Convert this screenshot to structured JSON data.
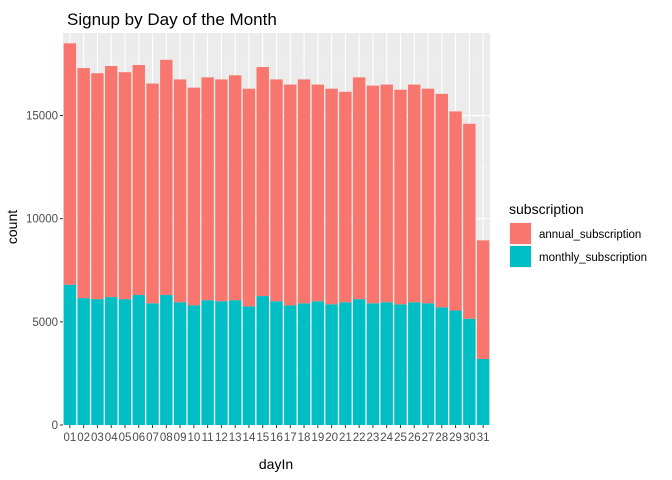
{
  "chart_data": {
    "type": "bar",
    "stacked": true,
    "title": "Signup by Day of the Month",
    "xlabel": "dayIn",
    "ylabel": "count",
    "ylim": [
      0,
      19000
    ],
    "yticks": [
      0,
      5000,
      10000,
      15000
    ],
    "grid": true,
    "legend_position": "right",
    "legend_title": "subscription",
    "categories": [
      "01",
      "02",
      "03",
      "04",
      "05",
      "06",
      "07",
      "08",
      "09",
      "10",
      "11",
      "12",
      "13",
      "14",
      "15",
      "16",
      "17",
      "18",
      "19",
      "20",
      "21",
      "22",
      "23",
      "24",
      "25",
      "26",
      "27",
      "28",
      "29",
      "30",
      "31"
    ],
    "series": [
      {
        "name": "monthly_subscription",
        "color": "#00BFC4",
        "values": [
          6800,
          6150,
          6100,
          6200,
          6100,
          6300,
          5900,
          6300,
          5950,
          5800,
          6050,
          6000,
          6050,
          5750,
          6250,
          6000,
          5800,
          5900,
          6000,
          5850,
          5950,
          6100,
          5900,
          5950,
          5850,
          5950,
          5900,
          5700,
          5550,
          5150,
          3200
        ]
      },
      {
        "name": "annual_subscription",
        "color": "#F8766D",
        "values": [
          11700,
          11150,
          10950,
          11200,
          11000,
          11150,
          10650,
          11400,
          10800,
          10550,
          10800,
          10750,
          10900,
          10550,
          11100,
          10750,
          10700,
          10850,
          10500,
          10450,
          10200,
          10750,
          10550,
          10550,
          10400,
          10550,
          10400,
          10350,
          9650,
          9450,
          5750
        ]
      }
    ]
  }
}
